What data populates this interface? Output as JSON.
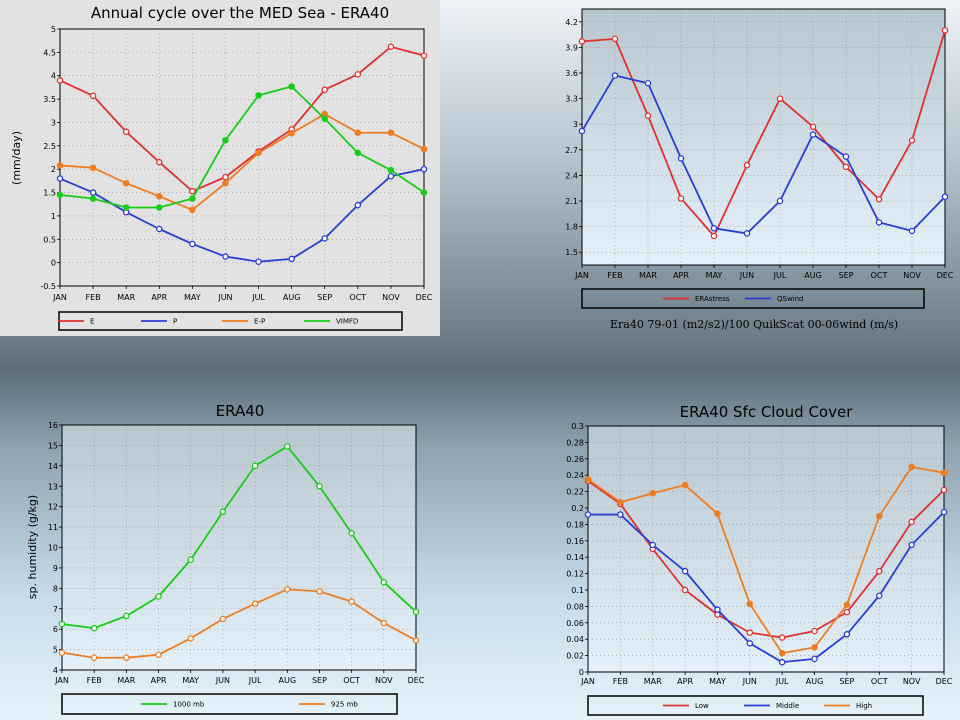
{
  "chart_data": [
    {
      "id": "c1",
      "type": "line",
      "title": "Annual cycle over the MED Sea - ERA40",
      "ylabel": "(mm/day)",
      "xlabel": "",
      "categories": [
        "JAN",
        "FEB",
        "MAR",
        "APR",
        "MAY",
        "JUN",
        "JUL",
        "AUG",
        "SEP",
        "OCT",
        "NOV",
        "DEC"
      ],
      "ylim": [
        -0.5,
        5
      ],
      "yticks": [
        "-0.5",
        "0",
        "0.5",
        "1",
        "1.5",
        "2",
        "2.5",
        "3",
        "3.5",
        "4",
        "4.5",
        "5"
      ],
      "grid": true,
      "legend_placement": "bottom",
      "series": [
        {
          "name": "E",
          "color": "#e03030",
          "marker": "open",
          "values": [
            3.9,
            3.57,
            2.8,
            2.15,
            1.53,
            1.83,
            2.38,
            2.85,
            3.7,
            4.03,
            4.62,
            4.43
          ]
        },
        {
          "name": "P",
          "color": "#2a3ed6",
          "marker": "open",
          "values": [
            1.8,
            1.5,
            1.08,
            0.72,
            0.4,
            0.13,
            0.02,
            0.08,
            0.52,
            1.23,
            1.85,
            2.0
          ]
        },
        {
          "name": "E-P",
          "color": "#ee7d22",
          "marker": "filled",
          "values": [
            2.08,
            2.03,
            1.7,
            1.42,
            1.13,
            1.7,
            2.35,
            2.77,
            3.18,
            2.78,
            2.78,
            2.43
          ]
        },
        {
          "name": "VIMFD",
          "color": "#19cc19",
          "marker": "filled",
          "values": [
            1.45,
            1.37,
            1.18,
            1.18,
            1.37,
            2.62,
            3.58,
            3.77,
            3.08,
            2.35,
            1.98,
            1.5
          ]
        }
      ]
    },
    {
      "id": "c2",
      "type": "line",
      "title": "",
      "ylabel": "",
      "xlabel": "",
      "categories": [
        "JAN",
        "FEB",
        "MAR",
        "APR",
        "MAY",
        "JUN",
        "JUL",
        "AUG",
        "SEP",
        "OCT",
        "NOV",
        "DEC"
      ],
      "ylim": [
        1.35,
        4.35
      ],
      "yticks": [
        "1.5",
        "1.8",
        "2.1",
        "2.4",
        "2.7",
        "3",
        "3.3",
        "3.6",
        "3.9",
        "4.2"
      ],
      "grid": true,
      "legend_placement": "bottom",
      "caption": "Era40 79-01 (m2/s2)/100        QuikScat 00-06wind (m/s)",
      "series": [
        {
          "name": "ERAstress",
          "color": "#e03030",
          "marker": "open",
          "values": [
            3.97,
            4.0,
            3.1,
            2.13,
            1.69,
            2.52,
            3.3,
            2.97,
            2.5,
            2.12,
            2.81,
            4.1
          ]
        },
        {
          "name": "QSwind",
          "color": "#2a3ed6",
          "marker": "open",
          "values": [
            2.92,
            3.57,
            3.48,
            2.6,
            1.78,
            1.72,
            2.1,
            2.88,
            2.62,
            1.85,
            1.75,
            2.15
          ]
        }
      ]
    },
    {
      "id": "c3",
      "type": "line",
      "title": "ERA40",
      "ylabel": "sp. humidity (g/kg)",
      "xlabel": "",
      "categories": [
        "JAN",
        "FEB",
        "MAR",
        "APR",
        "MAY",
        "JUN",
        "JUL",
        "AUG",
        "SEP",
        "OCT",
        "NOV",
        "DEC"
      ],
      "ylim": [
        4,
        16
      ],
      "yticks": [
        "4",
        "5",
        "6",
        "7",
        "8",
        "9",
        "10",
        "11",
        "12",
        "13",
        "14",
        "15",
        "16"
      ],
      "grid": true,
      "legend_placement": "bottom",
      "series": [
        {
          "name": "1000 mb",
          "color": "#19cc19",
          "marker": "open",
          "values": [
            6.25,
            6.05,
            6.65,
            7.6,
            9.4,
            11.75,
            14.0,
            14.95,
            13.0,
            10.7,
            8.3,
            6.85
          ]
        },
        {
          "name": "925 mb",
          "color": "#ee7d22",
          "marker": "open",
          "values": [
            4.85,
            4.6,
            4.6,
            4.75,
            5.55,
            6.5,
            7.25,
            7.95,
            7.85,
            7.35,
            6.3,
            5.45
          ]
        }
      ]
    },
    {
      "id": "c4",
      "type": "line",
      "title": "ERA40 Sfc Cloud Cover",
      "ylabel": "",
      "xlabel": "",
      "categories": [
        "JAN",
        "FEB",
        "MAR",
        "APR",
        "MAY",
        "JUN",
        "JUL",
        "AUG",
        "SEP",
        "OCT",
        "NOV",
        "DEC"
      ],
      "ylim": [
        0,
        0.3
      ],
      "yticks": [
        "0",
        "0.02",
        "0.04",
        "0.06",
        "0.08",
        "0.1",
        "0.12",
        "0.14",
        "0.16",
        "0.18",
        "0.2",
        "0.22",
        "0.24",
        "0.26",
        "0.28",
        "0.3"
      ],
      "grid": true,
      "legend_placement": "bottom",
      "series": [
        {
          "name": "Low",
          "color": "#e03030",
          "marker": "open",
          "values": [
            0.233,
            0.205,
            0.15,
            0.1,
            0.07,
            0.048,
            0.042,
            0.05,
            0.073,
            0.123,
            0.183,
            0.222
          ]
        },
        {
          "name": "Middle",
          "color": "#2a3ed6",
          "marker": "open",
          "values": [
            0.192,
            0.192,
            0.155,
            0.123,
            0.076,
            0.035,
            0.012,
            0.016,
            0.046,
            0.093,
            0.155,
            0.195
          ]
        },
        {
          "name": "High",
          "color": "#ee7d22",
          "marker": "filled",
          "values": [
            0.235,
            0.207,
            0.218,
            0.228,
            0.193,
            0.083,
            0.023,
            0.03,
            0.082,
            0.19,
            0.25,
            0.243
          ]
        }
      ]
    }
  ]
}
